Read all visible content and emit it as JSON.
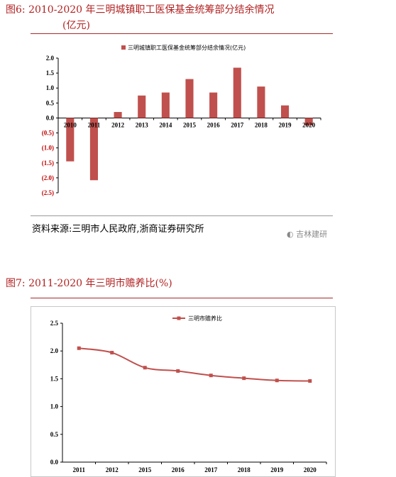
{
  "figure6": {
    "title": "图6:   2010-2020 年三明城镇职工医保基金统筹部分结余情况",
    "title_cont": "(亿元)",
    "source": "资料来源:三明市人民政府,浙商证券研究所",
    "watermark": "吉林建研"
  },
  "figure7": {
    "title": "图7:   2011-2020 年三明市赡养比(%)"
  },
  "colors": {
    "accent": "#c0504d",
    "title": "#b22222"
  },
  "chart_data": [
    {
      "type": "bar",
      "categories": [
        "2010",
        "2011",
        "2012",
        "2013",
        "2014",
        "2015",
        "2016",
        "2017",
        "2018",
        "2019",
        "2020"
      ],
      "series": [
        {
          "name": "三明城镇职工医保基金统筹部分结余情况(亿元)",
          "values": [
            -1.45,
            -2.08,
            0.2,
            0.75,
            0.85,
            1.3,
            0.85,
            1.68,
            1.05,
            0.42,
            -0.25
          ]
        }
      ],
      "yticks": [
        2.0,
        1.5,
        1.0,
        0.5,
        0.0,
        -0.5,
        -1.0,
        -1.5,
        -2.0,
        -2.5
      ],
      "ytick_labels": [
        "2.0",
        "1.5",
        "1.0",
        "0.5",
        "0.0",
        "(0.5)",
        "(1.0)",
        "(1.5)",
        "(2.0)",
        "(2.5)"
      ],
      "ylim": [
        -2.5,
        2.0
      ],
      "legend_position": "top"
    },
    {
      "type": "line",
      "categories": [
        "2011",
        "2012",
        "2015",
        "2016",
        "2017",
        "2018",
        "2019",
        "2020"
      ],
      "series": [
        {
          "name": "三明市赡养比",
          "values": [
            2.05,
            1.97,
            1.7,
            1.64,
            1.56,
            1.51,
            1.47,
            1.46
          ]
        }
      ],
      "yticks": [
        0.0,
        0.5,
        1.0,
        1.5,
        2.0,
        2.5
      ],
      "ytick_labels": [
        "0.0",
        "0.5",
        "1.0",
        "1.5",
        "2.0",
        "2.5"
      ],
      "ylim": [
        0,
        2.5
      ],
      "legend_position": "top"
    }
  ]
}
